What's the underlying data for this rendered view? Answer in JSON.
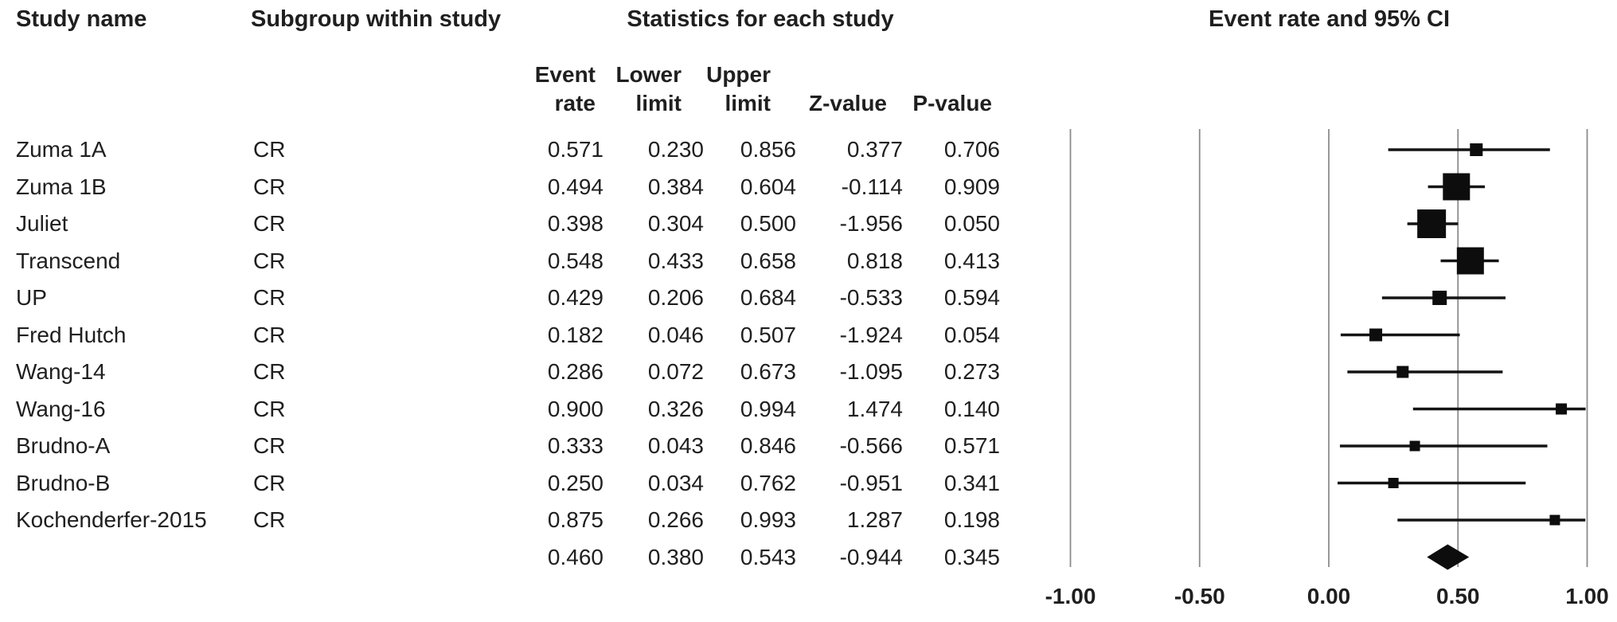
{
  "title_row": {
    "study_name": "Study name",
    "subgroup": "Subgroup within study",
    "statistics": "Statistics for each study",
    "plot": "Event rate and 95% CI"
  },
  "stat_headers": [
    {
      "line1": "Event",
      "line2": "rate"
    },
    {
      "line1": "Lower",
      "line2": "limit"
    },
    {
      "line1": "Upper",
      "line2": "limit"
    },
    {
      "line1": "",
      "line2": "Z-value"
    },
    {
      "line1": "",
      "line2": "P-value"
    }
  ],
  "chart_data": {
    "type": "forest",
    "title": "Event rate and 95% CI",
    "x_axis": {
      "min": -1.0,
      "max": 1.0,
      "tick_values": [
        -1.0,
        -0.5,
        0.0,
        0.5,
        1.0
      ],
      "tick_labels": [
        "-1.00",
        "-0.50",
        "0.00",
        "0.50",
        "1.00"
      ],
      "grid": true
    },
    "columns": [
      "Study name",
      "Subgroup within study",
      "Event rate",
      "Lower limit",
      "Upper limit",
      "Z-value",
      "P-value"
    ],
    "rows": [
      {
        "study": "Zuma 1A",
        "subgroup": "CR",
        "event_rate": "0.571",
        "lower": "0.230",
        "upper": "0.856",
        "z": "0.377",
        "p": "0.706",
        "marker_size": 16
      },
      {
        "study": "Zuma 1B",
        "subgroup": "CR",
        "event_rate": "0.494",
        "lower": "0.384",
        "upper": "0.604",
        "z": "-0.114",
        "p": "0.909",
        "marker_size": 34
      },
      {
        "study": "Juliet",
        "subgroup": "CR",
        "event_rate": "0.398",
        "lower": "0.304",
        "upper": "0.500",
        "z": "-1.956",
        "p": "0.050",
        "marker_size": 36
      },
      {
        "study": "Transcend",
        "subgroup": "CR",
        "event_rate": "0.548",
        "lower": "0.433",
        "upper": "0.658",
        "z": "0.818",
        "p": "0.413",
        "marker_size": 34
      },
      {
        "study": "UP",
        "subgroup": "CR",
        "event_rate": "0.429",
        "lower": "0.206",
        "upper": "0.684",
        "z": "-0.533",
        "p": "0.594",
        "marker_size": 18
      },
      {
        "study": "Fred Hutch",
        "subgroup": "CR",
        "event_rate": "0.182",
        "lower": "0.046",
        "upper": "0.507",
        "z": "-1.924",
        "p": "0.054",
        "marker_size": 16
      },
      {
        "study": "Wang-14",
        "subgroup": "CR",
        "event_rate": "0.286",
        "lower": "0.072",
        "upper": "0.673",
        "z": "-1.095",
        "p": "0.273",
        "marker_size": 15
      },
      {
        "study": "Wang-16",
        "subgroup": "CR",
        "event_rate": "0.900",
        "lower": "0.326",
        "upper": "0.994",
        "z": "1.474",
        "p": "0.140",
        "marker_size": 14
      },
      {
        "study": "Brudno-A",
        "subgroup": "CR",
        "event_rate": "0.333",
        "lower": "0.043",
        "upper": "0.846",
        "z": "-0.566",
        "p": "0.571",
        "marker_size": 13
      },
      {
        "study": "Brudno-B",
        "subgroup": "CR",
        "event_rate": "0.250",
        "lower": "0.034",
        "upper": "0.762",
        "z": "-0.951",
        "p": "0.341",
        "marker_size": 13
      },
      {
        "study": "Kochenderfer-2015",
        "subgroup": "CR",
        "event_rate": "0.875",
        "lower": "0.266",
        "upper": "0.993",
        "z": "1.287",
        "p": "0.198",
        "marker_size": 13
      }
    ],
    "summary": {
      "study": "",
      "subgroup": "",
      "event_rate": "0.460",
      "lower": "0.380",
      "upper": "0.543",
      "z": "-0.944",
      "p": "0.345",
      "marker": "diamond"
    },
    "legend_position": "none"
  },
  "colors": {
    "text": "#1f1f1f",
    "gridline": "#8c8c8c",
    "ci_line": "#141414",
    "marker": "#0d0d0d"
  }
}
